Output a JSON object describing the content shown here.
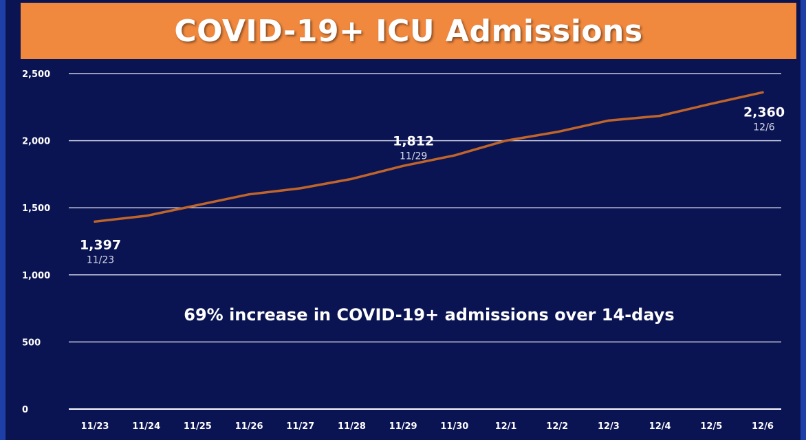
{
  "chart_data": {
    "type": "line",
    "title": "COVID-19+ ICU Admissions",
    "categories": [
      "11/23",
      "11/24",
      "11/25",
      "11/26",
      "11/27",
      "11/28",
      "11/29",
      "11/30",
      "12/1",
      "12/2",
      "12/3",
      "12/4",
      "12/5",
      "12/6"
    ],
    "values": [
      1397,
      1440,
      1520,
      1600,
      1645,
      1715,
      1812,
      1890,
      2000,
      2065,
      2150,
      2185,
      2275,
      2360
    ],
    "ylim": [
      0,
      2500
    ],
    "yticks": [
      0,
      500,
      1000,
      1500,
      2000,
      2500
    ],
    "ytick_labels": [
      "0",
      "500",
      "1,000",
      "1,500",
      "2,000",
      "2,500"
    ],
    "grid": true,
    "line_color": "#c0652a",
    "annotations": [
      {
        "index": 0,
        "value": "1,397",
        "date": "11/23"
      },
      {
        "index": 6,
        "value": "1,812",
        "date": "11/29"
      },
      {
        "index": 13,
        "value": "2,360",
        "date": "12/6"
      }
    ],
    "note": "69% increase in COVID-19+ admissions over 14-days"
  },
  "colors": {
    "background": "#0b1452",
    "title_bar": "#f0883e",
    "gridline": "#c9cbe0"
  }
}
